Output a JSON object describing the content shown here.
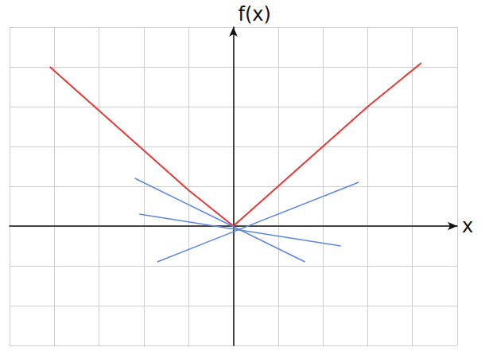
{
  "chart_data": {
    "type": "line",
    "x_label": "x",
    "y_label": "f(x)",
    "xlim": [
      -5,
      5
    ],
    "ylim": [
      -3,
      5
    ],
    "xticks": [
      -5,
      -4,
      -3,
      -2,
      -1,
      0,
      1,
      2,
      3,
      4,
      5
    ],
    "yticks": [
      -3,
      -2,
      -1,
      0,
      1,
      2,
      3,
      4,
      5
    ],
    "grid": true,
    "tick_labels": false,
    "series": [
      {
        "color": "#e53935",
        "x": [
          -4.1,
          -3,
          -2,
          -1,
          0,
          1,
          2,
          3,
          4.2
        ],
        "values": [
          4.0,
          2.9,
          1.9,
          0.9,
          0,
          1.0,
          2.0,
          3.0,
          4.1
        ]
      },
      {
        "color": "#5b86e5",
        "x": [
          -2.2,
          1.6
        ],
        "values": [
          1.2,
          -0.9
        ]
      },
      {
        "color": "#5b86e5",
        "x": [
          -2.1,
          2.4
        ],
        "values": [
          0.3,
          -0.5
        ]
      },
      {
        "color": "#5b86e5",
        "x": [
          -1.7,
          2.8
        ],
        "values": [
          -0.9,
          1.1
        ]
      }
    ]
  }
}
